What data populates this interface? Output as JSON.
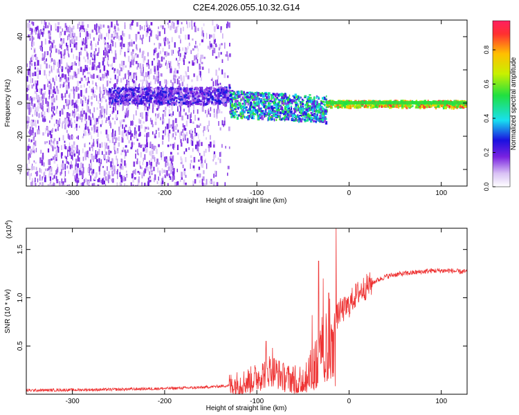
{
  "figure_title": "C2E4.2026.055.10.32.G14",
  "chart_data": [
    {
      "type": "heatmap",
      "xlabel": "Height of straight line (km)",
      "ylabel": "Frequency (Hz)",
      "xlim": [
        -350,
        128
      ],
      "ylim": [
        -50,
        50
      ],
      "xticks": [
        -300,
        -200,
        -100,
        0,
        100
      ],
      "xtick_labels": [
        "-300",
        "-200",
        "-100",
        "0",
        "100"
      ],
      "yticks": [
        -40,
        -20,
        0,
        20,
        40
      ],
      "ytick_labels": [
        "-40",
        "-20",
        "0",
        "20",
        "40"
      ],
      "colorbar": {
        "label": "Normalized spectral amplitude",
        "range": [
          0,
          0.97
        ],
        "ticks": [
          0,
          0.2,
          0.4,
          0.6,
          0.8
        ],
        "tick_labels": [
          "0.0",
          "0.2",
          "0.4",
          "0.6",
          "0.8"
        ]
      },
      "regions": [
        {
          "name": "noise",
          "x_range": [
            -350,
            -130
          ],
          "f_range": [
            -50,
            50
          ],
          "amplitude_range": [
            0.05,
            0.2
          ]
        },
        {
          "name": "signal-onset",
          "x_range": [
            -262,
            -130
          ],
          "f_center": 5,
          "f_width": 10,
          "amplitude_range": [
            0.1,
            0.3
          ]
        },
        {
          "name": "signal-broad",
          "x_range": [
            -130,
            -25
          ],
          "f_center": 0,
          "f_width": 16,
          "amplitude_range": [
            0.15,
            0.6
          ]
        },
        {
          "name": "signal-narrow",
          "x_range": [
            -25,
            128
          ],
          "f_center": 0,
          "f_width": 4,
          "amplitude_range": [
            0.5,
            0.95
          ]
        }
      ]
    },
    {
      "type": "line",
      "xlabel": "Height of straight line (km)",
      "ylabel": "SNR (10 * v/v)",
      "yscale_label": "(x10",
      "yscale_exponent": "4",
      "yscale_suffix": ")",
      "xlim": [
        -350,
        128
      ],
      "ylim": [
        0,
        1.72
      ],
      "xticks": [
        -300,
        -200,
        -100,
        0,
        100
      ],
      "xtick_labels": [
        "-300",
        "-200",
        "-100",
        "0",
        "100"
      ],
      "yticks": [
        0.5,
        1.0,
        1.5
      ],
      "ytick_labels": [
        "0.5",
        "1.0",
        "1.5"
      ],
      "series": [
        {
          "name": "SNR",
          "color": "#ee3333",
          "x": [
            -350,
            -300,
            -250,
            -200,
            -160,
            -130,
            -115,
            -105,
            -95,
            -85,
            -78,
            -72,
            -65,
            -55,
            -48,
            -42,
            -38,
            -34,
            -30,
            -26,
            -22,
            -18,
            -14,
            -10,
            -5,
            0,
            5,
            10,
            15,
            20,
            25,
            30,
            40,
            50,
            60,
            70,
            80,
            90,
            100,
            110,
            120,
            128
          ],
          "y": [
            0.04,
            0.045,
            0.05,
            0.06,
            0.07,
            0.09,
            0.12,
            0.15,
            0.2,
            0.26,
            0.22,
            0.18,
            0.16,
            0.15,
            0.2,
            0.28,
            0.38,
            0.5,
            0.55,
            0.6,
            0.72,
            0.66,
            0.78,
            0.86,
            0.88,
            0.92,
            1.0,
            1.05,
            1.09,
            1.12,
            1.15,
            1.18,
            1.22,
            1.24,
            1.25,
            1.26,
            1.27,
            1.28,
            1.28,
            1.28,
            1.27,
            1.27
          ],
          "spikes": [
            {
              "x": -90,
              "y": 0.55
            },
            {
              "x": -83,
              "y": 0.48
            },
            {
              "x": -40,
              "y": 0.82
            },
            {
              "x": -33,
              "y": 1.38
            },
            {
              "x": -28,
              "y": 1.2
            },
            {
              "x": -22,
              "y": 1.05
            },
            {
              "x": -14,
              "y": 1.72
            }
          ]
        }
      ]
    }
  ]
}
